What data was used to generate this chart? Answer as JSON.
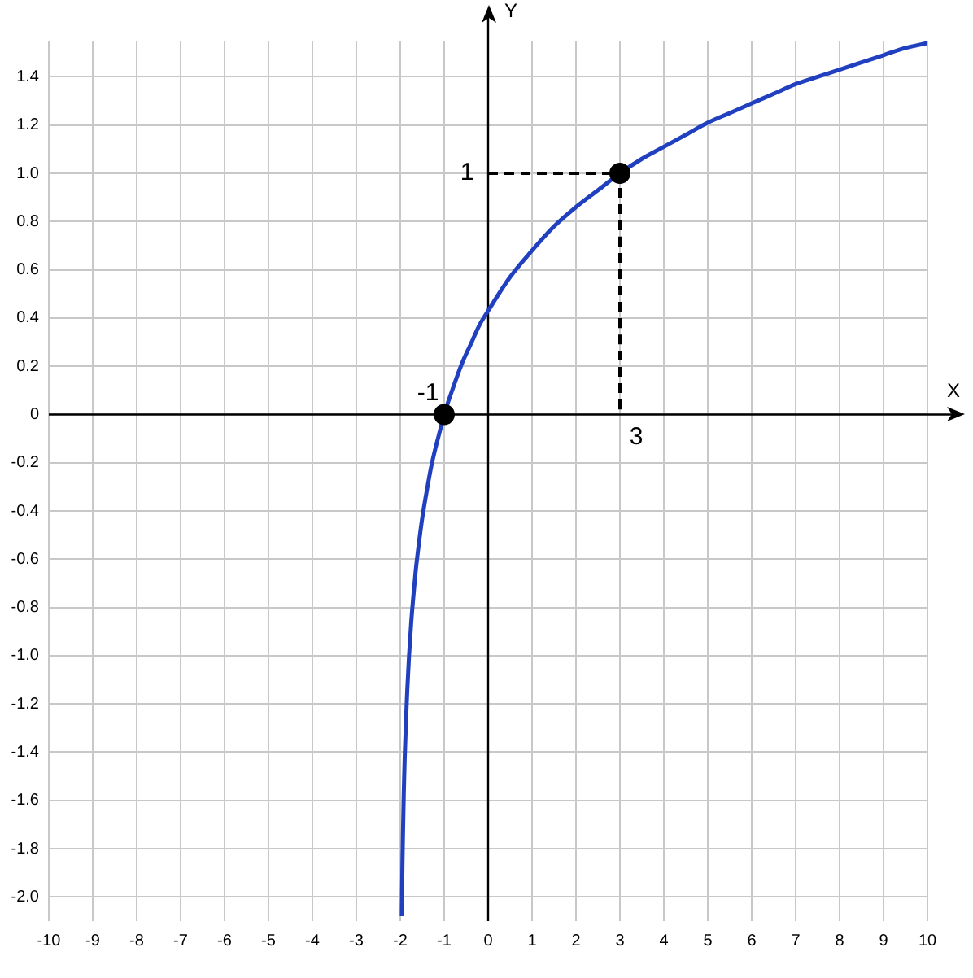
{
  "chart_data": {
    "type": "line",
    "xlabel": "X",
    "ylabel": "Y",
    "xlim": [
      -10,
      10
    ],
    "ylim": [
      -2.1,
      1.55
    ],
    "xticks": [
      -10,
      -9,
      -8,
      -7,
      -6,
      -5,
      -4,
      -3,
      -2,
      -1,
      0,
      1,
      2,
      3,
      4,
      5,
      6,
      7,
      8,
      9,
      10
    ],
    "yticks": [
      {
        "value": -2,
        "label": "-2.0"
      },
      -1.8,
      -1.6,
      -1.4,
      -1.2,
      {
        "value": -1,
        "label": "-1.0"
      },
      -0.8,
      -0.6,
      -0.4,
      -0.2,
      0,
      0.2,
      0.4,
      0.6,
      0.8,
      {
        "value": 1,
        "label": "1.0"
      },
      1.2,
      1.4
    ],
    "grid": true,
    "series": [
      {
        "type": "line",
        "color": "#2040c0",
        "marker": "none",
        "line_style": "solid",
        "x": [
          -1.965,
          -1.96,
          -1.95,
          -1.94,
          -1.92,
          -1.9,
          -1.87,
          -1.84,
          -1.8,
          -1.75,
          -1.7,
          -1.65,
          -1.6,
          -1.5,
          -1.4,
          -1.3,
          -1.2,
          -1.1,
          -1,
          -0.8,
          -0.6,
          -0.4,
          -0.2,
          0,
          0.5,
          1,
          1.5,
          2,
          2.5,
          3,
          3.5,
          4,
          4.5,
          5,
          5.5,
          6,
          6.5,
          7,
          7.5,
          8,
          8.5,
          9,
          9.5,
          10
        ],
        "values": [
          -2.08,
          -2.0,
          -1.86,
          -1.75,
          -1.57,
          -1.43,
          -1.27,
          -1.14,
          -1.0,
          -0.86,
          -0.75,
          -0.65,
          -0.57,
          -0.43,
          -0.32,
          -0.22,
          -0.14,
          -0.07,
          0,
          0.11,
          0.21,
          0.29,
          0.37,
          0.43,
          0.57,
          0.68,
          0.78,
          0.86,
          0.93,
          1.0,
          1.06,
          1.11,
          1.16,
          1.21,
          1.25,
          1.29,
          1.33,
          1.37,
          1.4,
          1.43,
          1.46,
          1.49,
          1.52,
          1.54
        ]
      },
      {
        "type": "line",
        "color": "#000000",
        "marker": "none",
        "line_style": "dashed",
        "x": [
          0,
          3,
          3
        ],
        "values": [
          1,
          1,
          0
        ]
      },
      {
        "type": "scatter",
        "color": "#000000",
        "marker": "circle",
        "x": [
          -1,
          3
        ],
        "values": [
          0,
          1
        ]
      }
    ],
    "annotations": [
      {
        "text": "-1",
        "x": -1,
        "y": 0
      },
      {
        "text": "1",
        "x": 0,
        "y": 1
      },
      {
        "text": "3",
        "x": 3,
        "y": 0
      }
    ]
  }
}
